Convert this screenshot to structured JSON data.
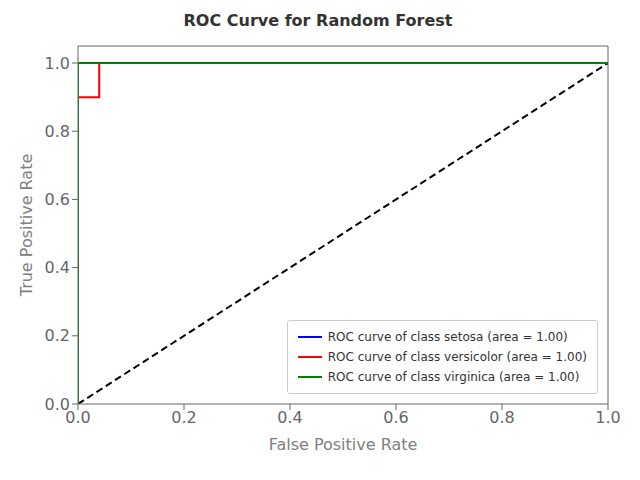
{
  "chart_data": {
    "type": "line",
    "title": "ROC Curve for Random Forest",
    "xlabel": "False Positive Rate",
    "ylabel": "True Positive Rate",
    "xlim": [
      0.0,
      1.0
    ],
    "ylim": [
      0.0,
      1.05
    ],
    "xticks": [
      {
        "value": 0.0,
        "label": "0.0"
      },
      0.2,
      0.4,
      0.6,
      0.8,
      {
        "value": 1.0,
        "label": "1.0"
      }
    ],
    "yticks": [
      {
        "value": 0.0,
        "label": "0.0"
      },
      0.2,
      0.4,
      0.6,
      0.8,
      {
        "value": 1.0,
        "label": "1.0"
      }
    ],
    "grid": false,
    "legend": "lower right",
    "series": [
      {
        "color": "black",
        "line_style": "dashed",
        "x": [
          0.0,
          1.0
        ],
        "values": [
          0.0,
          1.0
        ]
      },
      {
        "name": "ROC curve of class setosa (area = 1.00)",
        "color": "blue",
        "x": [
          0.0,
          0.0,
          1.0
        ],
        "values": [
          0.0,
          1.0,
          1.0
        ]
      },
      {
        "name": "ROC curve of class versicolor (area = 1.00)",
        "color": "red",
        "x": [
          0.0,
          0.0,
          0.04,
          0.04,
          1.0
        ],
        "values": [
          0.0,
          0.9,
          0.9,
          1.0,
          1.0
        ]
      },
      {
        "name": "ROC curve of class virginica (area = 1.00)",
        "color": "green",
        "x": [
          0.0,
          0.0,
          1.0
        ],
        "values": [
          0.0,
          1.0,
          1.0
        ]
      }
    ]
  }
}
